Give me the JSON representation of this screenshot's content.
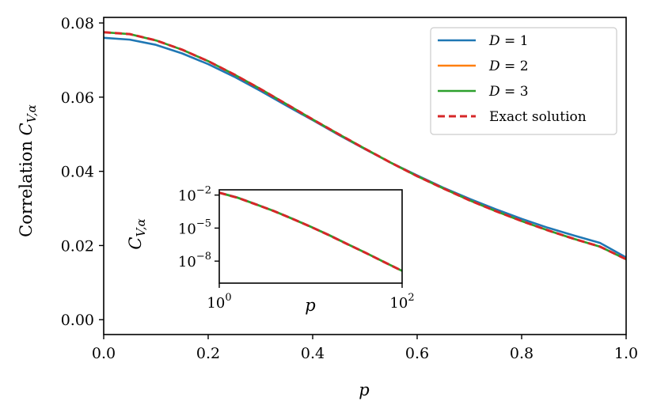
{
  "chart_data": [
    {
      "type": "line",
      "name": "main",
      "xlabel": "p",
      "ylabel_prefix": "Correlation ",
      "ylabel_var": "C",
      "ylabel_sub": "V,α",
      "xlim": [
        0.0,
        1.0
      ],
      "ylim": [
        -0.004,
        0.0815
      ],
      "xticks": [
        0.0,
        0.2,
        0.4,
        0.6,
        0.8,
        1.0
      ],
      "xtick_labels": [
        "0.0",
        "0.2",
        "0.4",
        "0.6",
        "0.8",
        "1.0"
      ],
      "yticks": [
        0.0,
        0.02,
        0.04,
        0.06,
        0.08
      ],
      "ytick_labels": [
        "0.00",
        "0.02",
        "0.04",
        "0.06",
        "0.08"
      ],
      "grid": false,
      "legend_position": "top-right",
      "x": [
        0.0,
        0.05,
        0.1,
        0.15,
        0.2,
        0.25,
        0.3,
        0.35,
        0.4,
        0.45,
        0.5,
        0.55,
        0.6,
        0.65,
        0.7,
        0.75,
        0.8,
        0.85,
        0.9,
        0.95,
        1.0
      ],
      "series": [
        {
          "name": "D = 1",
          "color": "#1f77b4",
          "style": "solid",
          "values": [
            0.076,
            0.0755,
            0.0741,
            0.0718,
            0.0689,
            0.0655,
            0.0617,
            0.0577,
            0.0538,
            0.0498,
            0.046,
            0.0423,
            0.0389,
            0.0356,
            0.0326,
            0.0298,
            0.0272,
            0.0248,
            0.0227,
            0.0207,
            0.0168
          ]
        },
        {
          "name": "D = 2",
          "color": "#ff7f0e",
          "style": "solid",
          "values": [
            0.0775,
            0.077,
            0.0753,
            0.0728,
            0.0697,
            0.0661,
            0.0622,
            0.0581,
            0.054,
            0.05,
            0.0461,
            0.0423,
            0.0387,
            0.0354,
            0.0322,
            0.0293,
            0.0266,
            0.0241,
            0.0218,
            0.0197,
            0.0163
          ]
        },
        {
          "name": "D = 3",
          "color": "#2ca02c",
          "style": "solid",
          "values": [
            0.0775,
            0.077,
            0.0753,
            0.0728,
            0.0697,
            0.0661,
            0.0622,
            0.0581,
            0.054,
            0.05,
            0.0461,
            0.0423,
            0.0387,
            0.0354,
            0.0322,
            0.0293,
            0.0266,
            0.0241,
            0.0218,
            0.0197,
            0.0163
          ]
        },
        {
          "name": "Exact solution",
          "color": "#d62728",
          "style": "dashed",
          "values": [
            0.0775,
            0.077,
            0.0753,
            0.0728,
            0.0697,
            0.0661,
            0.0622,
            0.0581,
            0.054,
            0.05,
            0.0461,
            0.0423,
            0.0387,
            0.0354,
            0.0322,
            0.0293,
            0.0266,
            0.0241,
            0.0218,
            0.0197,
            0.0163
          ]
        }
      ]
    },
    {
      "type": "line",
      "name": "inset",
      "xlabel": "p",
      "ylabel_var": "C",
      "ylabel_sub": "V,α",
      "xscale": "log",
      "yscale": "log",
      "xlim": [
        1,
        100
      ],
      "ylim": [
        1e-10,
        0.03
      ],
      "xticks": [
        1,
        100
      ],
      "xtick_bases": [
        "10",
        "10"
      ],
      "xtick_exps": [
        "0",
        "2"
      ],
      "yticks": [
        0.01,
        1e-05,
        1e-08
      ],
      "ytick_bases": [
        "10",
        "10",
        "10"
      ],
      "ytick_exps": [
        "−2",
        "−5",
        "−8"
      ],
      "x": [
        1,
        1.6,
        2.5,
        4,
        6.3,
        10,
        16,
        25,
        40,
        63,
        100
      ],
      "series": [
        {
          "name": "D = 1",
          "color": "#1f77b4",
          "style": "solid",
          "values": [
            0.0168,
            0.0058,
            0.0015,
            0.00035,
            7.2e-05,
            1.35e-05,
            2.3e-06,
            3.7e-07,
            5.7e-08,
            8.7e-09,
            1.3e-09
          ]
        },
        {
          "name": "D = 2",
          "color": "#ff7f0e",
          "style": "solid",
          "values": [
            0.0163,
            0.0056,
            0.00145,
            0.00034,
            7e-05,
            1.32e-05,
            2.2e-06,
            3.6e-07,
            5.6e-08,
            8.5e-09,
            1.3e-09
          ]
        },
        {
          "name": "D = 3",
          "color": "#2ca02c",
          "style": "solid",
          "values": [
            0.0163,
            0.0056,
            0.00145,
            0.00034,
            7e-05,
            1.32e-05,
            2.2e-06,
            3.6e-07,
            5.6e-08,
            8.5e-09,
            1.3e-09
          ]
        },
        {
          "name": "Exact solution",
          "color": "#d62728",
          "style": "dashed",
          "values": [
            0.0163,
            0.0056,
            0.00145,
            0.00034,
            7e-05,
            1.32e-05,
            2.2e-06,
            3.6e-07,
            5.6e-08,
            8.5e-09,
            1.3e-09
          ]
        }
      ]
    }
  ]
}
